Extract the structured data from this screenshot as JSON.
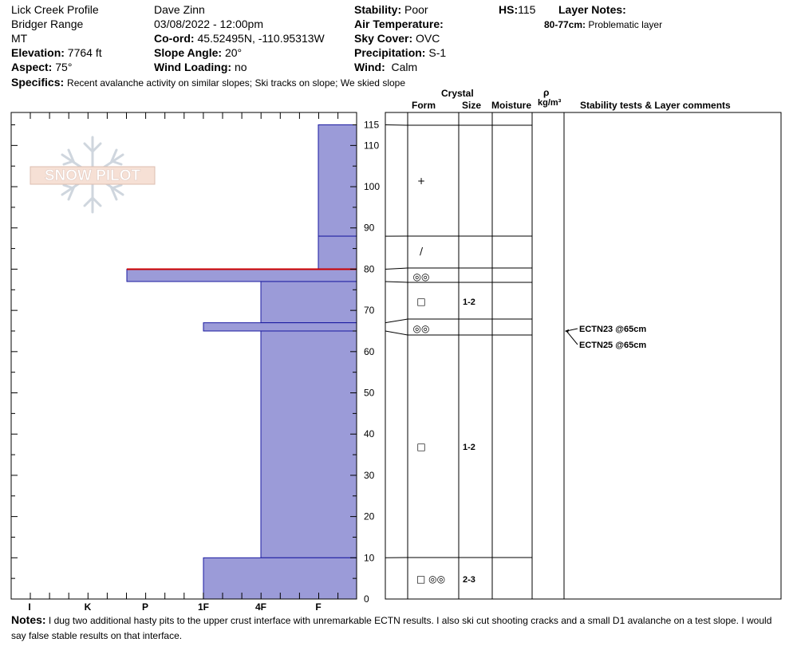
{
  "header": {
    "profile_name": "Lick Creek Profile",
    "range": "Bridger Range",
    "state": "MT",
    "elevation_label": "Elevation:",
    "elevation_value": "7764 ft",
    "aspect_label": "Aspect:",
    "aspect_value": "75°",
    "observer": "Dave Zinn",
    "datetime": "03/08/2022 - 12:00pm",
    "coord_label": "Co-ord:",
    "coord_value": "45.52495N, -110.95313W",
    "slope_label": "Slope Angle:",
    "slope_value": "20°",
    "wind_loading_label": "Wind Loading:",
    "wind_loading_value": "no",
    "stability_label": "Stability:",
    "stability_value": "Poor",
    "air_temp_label": "Air Temperature:",
    "sky_label": "Sky Cover:",
    "sky_value": "OVC",
    "precip_label": "Precipitation:",
    "precip_value": "S-1",
    "wind_label": "Wind:",
    "wind_value": "Calm",
    "hs_label": "HS:",
    "hs_value": "115",
    "layer_notes_label": "Layer Notes:",
    "layer_note_range": "80-77cm:",
    "layer_note_text": "Problematic layer",
    "specifics_label": "Specifics:",
    "specifics_text": "Recent avalanche activity on similar slopes; Ski tracks on slope; We skied slope"
  },
  "logo_text": "SNOW PILOT",
  "columns": {
    "crystal": "Crystal",
    "form": "Form",
    "size": "Size",
    "moisture": "Moisture",
    "rho": "ρ",
    "density_unit": "kg/m³",
    "stability": "Stability tests & Layer comments"
  },
  "hardness_scale": [
    "I",
    "K",
    "P",
    "1F",
    "4F",
    "F"
  ],
  "depth_ticks": [
    "0",
    "10",
    "20",
    "30",
    "40",
    "50",
    "60",
    "70",
    "80",
    "90",
    "100",
    "110",
    "115"
  ],
  "chart_data": {
    "type": "snow-profile",
    "total_height_cm": 115,
    "layers": [
      {
        "top": 115,
        "bottom": 88,
        "hardness": "F",
        "form": "+",
        "size": ""
      },
      {
        "top": 88,
        "bottom": 80,
        "hardness": "F",
        "form": "/",
        "size": ""
      },
      {
        "top": 80,
        "bottom": 77,
        "hardness": "P",
        "form": "◎◎",
        "size": "",
        "flagged": true
      },
      {
        "top": 77,
        "bottom": 67,
        "hardness": "4F",
        "form": "□",
        "size": "1-2"
      },
      {
        "top": 67,
        "bottom": 65,
        "hardness": "1F",
        "form": "◎◎",
        "size": ""
      },
      {
        "top": 65,
        "bottom": 10,
        "hardness": "4F",
        "form": "□",
        "size": "1-2"
      },
      {
        "top": 10,
        "bottom": 0,
        "hardness": "1F",
        "form": "□ ◎◎",
        "size": "2-3"
      }
    ],
    "tests": [
      {
        "label": "ECTN23 @65cm",
        "depth": 65
      },
      {
        "label": "ECTN25 @65cm",
        "depth": 65
      }
    ]
  },
  "notes": {
    "label": "Notes:",
    "text": "I dug two additional hasty pits to the upper crust interface with unremarkable ECTN results. I also ski cut shooting cracks and a small D1 avalanche on a test slope. I would say false stable results on that interface."
  }
}
